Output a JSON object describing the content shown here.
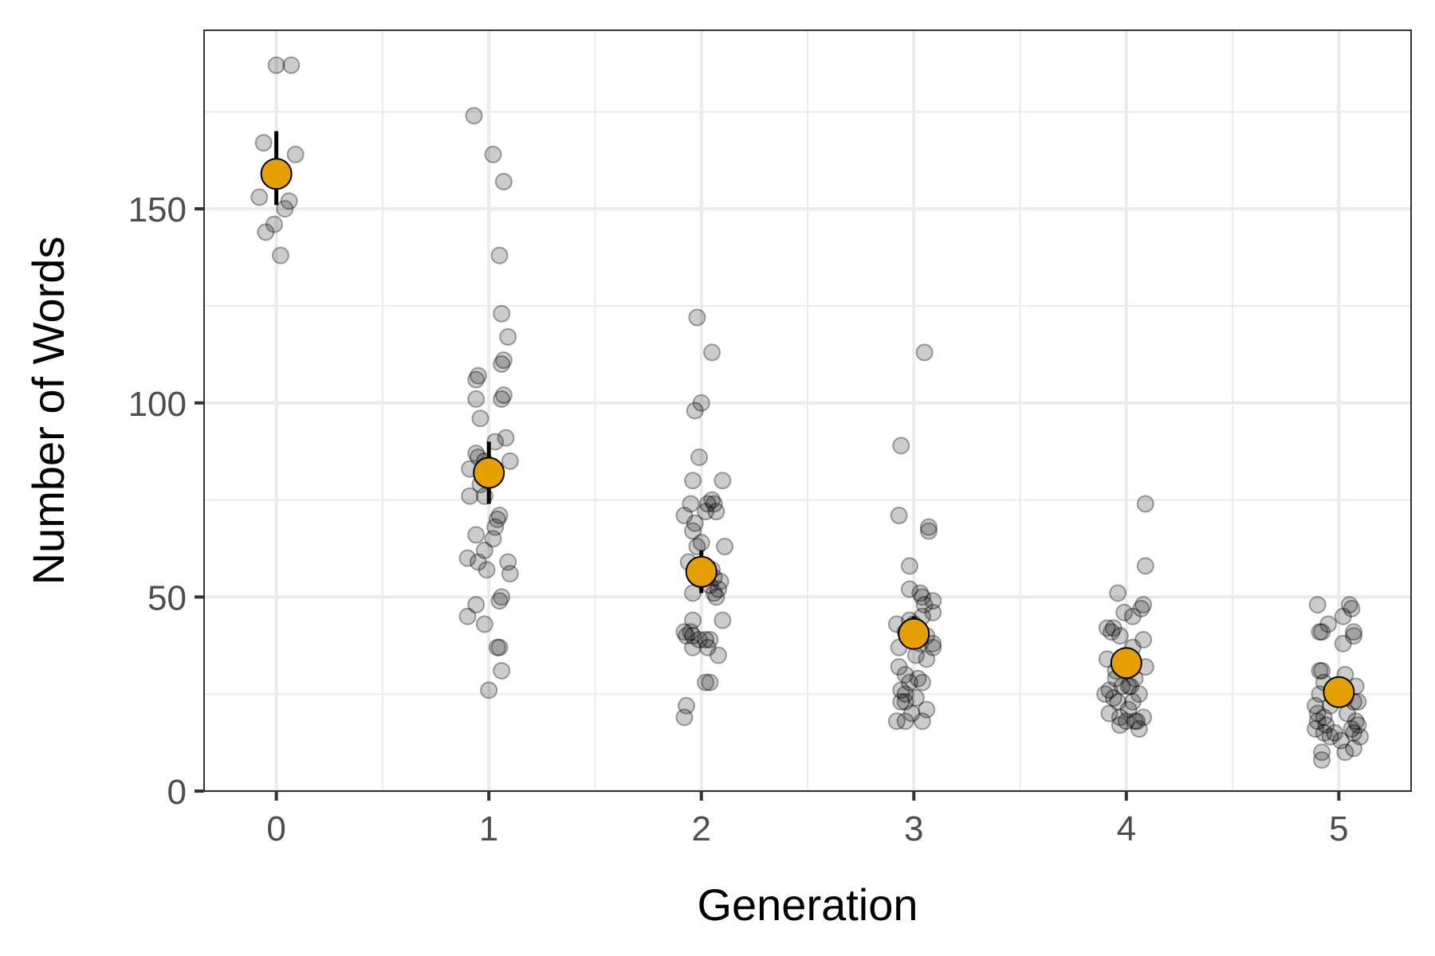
{
  "chart_data": {
    "type": "scatter",
    "title": "",
    "xlabel": "Generation",
    "ylabel": "Number of Words",
    "x_ticks": [
      "0",
      "1",
      "2",
      "3",
      "4",
      "5"
    ],
    "y_ticks": [
      "0",
      "50",
      "100",
      "150"
    ],
    "xlim": [
      -0.34,
      5.34
    ],
    "ylim": [
      0,
      196
    ],
    "grid": true,
    "legend": "none",
    "colors": {
      "mean_fill": "#E69F00",
      "point_fill": "#000000",
      "grid": "#ebebeb",
      "panel_border": "#333333"
    },
    "series": [
      {
        "kind": "jittered individual points",
        "points": [
          {
            "x": 0.0,
            "y": 187
          },
          {
            "x": 0.07,
            "y": 187
          },
          {
            "x": -0.06,
            "y": 167
          },
          {
            "x": 0.09,
            "y": 164
          },
          {
            "x": -0.08,
            "y": 153
          },
          {
            "x": 0.06,
            "y": 152
          },
          {
            "x": 0.04,
            "y": 150
          },
          {
            "x": -0.01,
            "y": 146
          },
          {
            "x": -0.05,
            "y": 144
          },
          {
            "x": 0.02,
            "y": 138
          },
          {
            "x": 0.93,
            "y": 174
          },
          {
            "x": 1.02,
            "y": 164
          },
          {
            "x": 1.07,
            "y": 157
          },
          {
            "x": 1.05,
            "y": 138
          },
          {
            "x": 1.06,
            "y": 123
          },
          {
            "x": 1.09,
            "y": 117
          },
          {
            "x": 1.07,
            "y": 111
          },
          {
            "x": 1.06,
            "y": 110
          },
          {
            "x": 0.95,
            "y": 107
          },
          {
            "x": 0.94,
            "y": 106
          },
          {
            "x": 1.07,
            "y": 102
          },
          {
            "x": 1.06,
            "y": 101
          },
          {
            "x": 0.94,
            "y": 101
          },
          {
            "x": 0.96,
            "y": 96
          },
          {
            "x": 1.08,
            "y": 91
          },
          {
            "x": 1.03,
            "y": 90
          },
          {
            "x": 0.94,
            "y": 87
          },
          {
            "x": 0.95,
            "y": 86
          },
          {
            "x": 0.98,
            "y": 85
          },
          {
            "x": 1.1,
            "y": 85
          },
          {
            "x": 0.91,
            "y": 83
          },
          {
            "x": 0.96,
            "y": 79
          },
          {
            "x": 0.91,
            "y": 76
          },
          {
            "x": 0.98,
            "y": 76
          },
          {
            "x": 1.05,
            "y": 71
          },
          {
            "x": 1.04,
            "y": 70
          },
          {
            "x": 1.03,
            "y": 68
          },
          {
            "x": 0.94,
            "y": 66
          },
          {
            "x": 1.02,
            "y": 65
          },
          {
            "x": 0.98,
            "y": 62
          },
          {
            "x": 0.9,
            "y": 60
          },
          {
            "x": 0.95,
            "y": 59
          },
          {
            "x": 1.09,
            "y": 59
          },
          {
            "x": 0.99,
            "y": 57
          },
          {
            "x": 1.1,
            "y": 56
          },
          {
            "x": 1.06,
            "y": 50
          },
          {
            "x": 1.05,
            "y": 49
          },
          {
            "x": 0.94,
            "y": 48
          },
          {
            "x": 0.9,
            "y": 45
          },
          {
            "x": 0.98,
            "y": 43
          },
          {
            "x": 1.04,
            "y": 37
          },
          {
            "x": 1.05,
            "y": 37
          },
          {
            "x": 1.06,
            "y": 31
          },
          {
            "x": 1.0,
            "y": 26
          },
          {
            "x": 1.98,
            "y": 122
          },
          {
            "x": 2.05,
            "y": 113
          },
          {
            "x": 2.0,
            "y": 100
          },
          {
            "x": 1.97,
            "y": 98
          },
          {
            "x": 1.99,
            "y": 86
          },
          {
            "x": 1.96,
            "y": 80
          },
          {
            "x": 2.1,
            "y": 80
          },
          {
            "x": 2.05,
            "y": 75
          },
          {
            "x": 2.03,
            "y": 74
          },
          {
            "x": 1.95,
            "y": 74
          },
          {
            "x": 2.06,
            "y": 74
          },
          {
            "x": 2.02,
            "y": 72
          },
          {
            "x": 2.07,
            "y": 72
          },
          {
            "x": 1.92,
            "y": 71
          },
          {
            "x": 1.97,
            "y": 69
          },
          {
            "x": 1.96,
            "y": 67
          },
          {
            "x": 2.0,
            "y": 64
          },
          {
            "x": 1.98,
            "y": 63
          },
          {
            "x": 2.11,
            "y": 63
          },
          {
            "x": 1.94,
            "y": 59
          },
          {
            "x": 2.05,
            "y": 57
          },
          {
            "x": 2.06,
            "y": 55
          },
          {
            "x": 2.09,
            "y": 54
          },
          {
            "x": 2.04,
            "y": 53
          },
          {
            "x": 2.08,
            "y": 52
          },
          {
            "x": 1.96,
            "y": 51
          },
          {
            "x": 2.06,
            "y": 51
          },
          {
            "x": 2.07,
            "y": 50
          },
          {
            "x": 1.96,
            "y": 44
          },
          {
            "x": 2.1,
            "y": 44
          },
          {
            "x": 1.92,
            "y": 41
          },
          {
            "x": 1.95,
            "y": 41
          },
          {
            "x": 1.93,
            "y": 40
          },
          {
            "x": 1.96,
            "y": 40
          },
          {
            "x": 2.02,
            "y": 39
          },
          {
            "x": 1.99,
            "y": 39
          },
          {
            "x": 2.04,
            "y": 39
          },
          {
            "x": 2.03,
            "y": 37
          },
          {
            "x": 1.96,
            "y": 37
          },
          {
            "x": 2.08,
            "y": 35
          },
          {
            "x": 2.04,
            "y": 28
          },
          {
            "x": 2.02,
            "y": 28
          },
          {
            "x": 1.93,
            "y": 22
          },
          {
            "x": 1.92,
            "y": 19
          },
          {
            "x": 3.05,
            "y": 113
          },
          {
            "x": 2.94,
            "y": 89
          },
          {
            "x": 2.93,
            "y": 71
          },
          {
            "x": 3.07,
            "y": 68
          },
          {
            "x": 3.07,
            "y": 67
          },
          {
            "x": 2.98,
            "y": 58
          },
          {
            "x": 2.98,
            "y": 52
          },
          {
            "x": 3.03,
            "y": 51
          },
          {
            "x": 3.04,
            "y": 50
          },
          {
            "x": 3.09,
            "y": 49
          },
          {
            "x": 3.05,
            "y": 48
          },
          {
            "x": 3.09,
            "y": 46
          },
          {
            "x": 3.04,
            "y": 45
          },
          {
            "x": 2.98,
            "y": 44
          },
          {
            "x": 2.92,
            "y": 43
          },
          {
            "x": 3.0,
            "y": 43
          },
          {
            "x": 2.96,
            "y": 41
          },
          {
            "x": 3.06,
            "y": 40
          },
          {
            "x": 3.03,
            "y": 38
          },
          {
            "x": 3.09,
            "y": 38
          },
          {
            "x": 3.09,
            "y": 37
          },
          {
            "x": 2.93,
            "y": 37
          },
          {
            "x": 3.01,
            "y": 35
          },
          {
            "x": 3.06,
            "y": 34
          },
          {
            "x": 2.93,
            "y": 32
          },
          {
            "x": 2.96,
            "y": 30
          },
          {
            "x": 3.02,
            "y": 29
          },
          {
            "x": 2.98,
            "y": 28
          },
          {
            "x": 3.04,
            "y": 28
          },
          {
            "x": 2.94,
            "y": 26
          },
          {
            "x": 2.96,
            "y": 25
          },
          {
            "x": 3.01,
            "y": 24
          },
          {
            "x": 2.94,
            "y": 23
          },
          {
            "x": 2.96,
            "y": 23
          },
          {
            "x": 3.06,
            "y": 21
          },
          {
            "x": 2.99,
            "y": 20
          },
          {
            "x": 2.92,
            "y": 18
          },
          {
            "x": 2.96,
            "y": 18
          },
          {
            "x": 3.04,
            "y": 18
          },
          {
            "x": 4.09,
            "y": 74
          },
          {
            "x": 4.09,
            "y": 58
          },
          {
            "x": 3.96,
            "y": 51
          },
          {
            "x": 4.08,
            "y": 48
          },
          {
            "x": 4.07,
            "y": 47
          },
          {
            "x": 3.99,
            "y": 46
          },
          {
            "x": 4.03,
            "y": 45
          },
          {
            "x": 3.91,
            "y": 42
          },
          {
            "x": 3.94,
            "y": 42
          },
          {
            "x": 3.93,
            "y": 41
          },
          {
            "x": 3.97,
            "y": 40
          },
          {
            "x": 4.08,
            "y": 39
          },
          {
            "x": 4.03,
            "y": 37
          },
          {
            "x": 3.91,
            "y": 34
          },
          {
            "x": 4.09,
            "y": 32
          },
          {
            "x": 3.95,
            "y": 31
          },
          {
            "x": 3.95,
            "y": 29
          },
          {
            "x": 4.04,
            "y": 29
          },
          {
            "x": 4.02,
            "y": 27
          },
          {
            "x": 3.98,
            "y": 27
          },
          {
            "x": 4.01,
            "y": 27
          },
          {
            "x": 3.92,
            "y": 26
          },
          {
            "x": 4.06,
            "y": 25
          },
          {
            "x": 3.9,
            "y": 25
          },
          {
            "x": 3.94,
            "y": 24
          },
          {
            "x": 3.96,
            "y": 23
          },
          {
            "x": 4.03,
            "y": 23
          },
          {
            "x": 4.01,
            "y": 21
          },
          {
            "x": 3.92,
            "y": 20
          },
          {
            "x": 3.97,
            "y": 19
          },
          {
            "x": 4.08,
            "y": 19
          },
          {
            "x": 4.05,
            "y": 18
          },
          {
            "x": 4.0,
            "y": 18
          },
          {
            "x": 4.04,
            "y": 18
          },
          {
            "x": 3.97,
            "y": 17
          },
          {
            "x": 4.06,
            "y": 16
          },
          {
            "x": 5.05,
            "y": 48
          },
          {
            "x": 4.9,
            "y": 48
          },
          {
            "x": 5.06,
            "y": 47
          },
          {
            "x": 5.02,
            "y": 45
          },
          {
            "x": 4.95,
            "y": 43
          },
          {
            "x": 4.91,
            "y": 41
          },
          {
            "x": 4.92,
            "y": 41
          },
          {
            "x": 5.07,
            "y": 41
          },
          {
            "x": 5.07,
            "y": 40
          },
          {
            "x": 5.02,
            "y": 38
          },
          {
            "x": 4.91,
            "y": 31
          },
          {
            "x": 4.92,
            "y": 31
          },
          {
            "x": 5.03,
            "y": 30
          },
          {
            "x": 4.93,
            "y": 28
          },
          {
            "x": 5.08,
            "y": 27
          },
          {
            "x": 4.98,
            "y": 26
          },
          {
            "x": 4.91,
            "y": 25
          },
          {
            "x": 5.03,
            "y": 24
          },
          {
            "x": 5.09,
            "y": 23
          },
          {
            "x": 5.07,
            "y": 23
          },
          {
            "x": 4.96,
            "y": 22
          },
          {
            "x": 4.89,
            "y": 22
          },
          {
            "x": 4.9,
            "y": 20
          },
          {
            "x": 5.04,
            "y": 20
          },
          {
            "x": 4.93,
            "y": 19
          },
          {
            "x": 5.08,
            "y": 18
          },
          {
            "x": 4.9,
            "y": 18
          },
          {
            "x": 4.94,
            "y": 17
          },
          {
            "x": 5.09,
            "y": 17
          },
          {
            "x": 4.89,
            "y": 16
          },
          {
            "x": 5.06,
            "y": 16
          },
          {
            "x": 4.93,
            "y": 15
          },
          {
            "x": 4.98,
            "y": 15
          },
          {
            "x": 5.07,
            "y": 15
          },
          {
            "x": 5.1,
            "y": 14
          },
          {
            "x": 4.96,
            "y": 14
          },
          {
            "x": 5.01,
            "y": 13
          },
          {
            "x": 5.07,
            "y": 11
          },
          {
            "x": 5.03,
            "y": 10
          },
          {
            "x": 4.92,
            "y": 10
          },
          {
            "x": 4.92,
            "y": 8
          }
        ]
      },
      {
        "kind": "mean with error bar",
        "points": [
          {
            "x": 0,
            "y": 159,
            "low": 151,
            "high": 170
          },
          {
            "x": 1,
            "y": 82,
            "low": 74,
            "high": 90
          },
          {
            "x": 2,
            "y": 56.5,
            "low": 51,
            "high": 62
          },
          {
            "x": 3,
            "y": 40.5,
            "low": 37,
            "high": 45
          },
          {
            "x": 4,
            "y": 33,
            "low": 30,
            "high": 36
          },
          {
            "x": 5,
            "y": 25.5,
            "low": 22,
            "high": 29
          }
        ]
      }
    ]
  }
}
